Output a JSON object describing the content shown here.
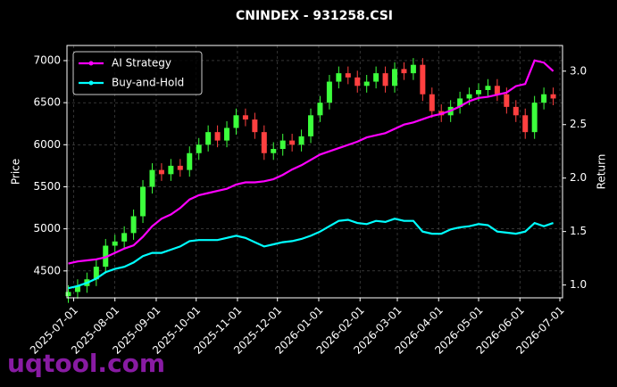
{
  "chart_data": {
    "type": "candlestick",
    "title": "CNINDEX - 931258.CSI",
    "x": [
      "2025-06-27",
      "2025-07-04",
      "2025-07-11",
      "2025-07-18",
      "2025-07-25",
      "2025-08-01",
      "2025-08-08",
      "2025-08-15",
      "2025-08-22",
      "2025-08-29",
      "2025-09-05",
      "2025-09-12",
      "2025-09-19",
      "2025-09-26",
      "2025-10-03",
      "2025-10-10",
      "2025-10-17",
      "2025-10-24",
      "2025-10-31",
      "2025-11-07",
      "2025-11-14",
      "2025-11-21",
      "2025-11-28",
      "2025-12-05",
      "2025-12-12",
      "2025-12-19",
      "2025-12-26",
      "2026-01-02",
      "2026-01-09",
      "2026-01-16",
      "2026-01-23",
      "2026-01-30",
      "2026-02-06",
      "2026-02-13",
      "2026-02-20",
      "2026-02-27",
      "2026-03-06",
      "2026-03-13",
      "2026-03-20",
      "2026-03-27",
      "2026-04-03",
      "2026-04-10",
      "2026-04-17",
      "2026-04-24",
      "2026-05-01",
      "2026-05-08",
      "2026-05-15",
      "2026-05-22",
      "2026-05-29",
      "2026-06-05",
      "2026-06-12",
      "2026-06-19",
      "2026-06-26"
    ],
    "open": [
      4200,
      4250,
      4320,
      4400,
      4550,
      4800,
      4850,
      4950,
      5150,
      5500,
      5700,
      5650,
      5750,
      5700,
      5900,
      6000,
      6150,
      6050,
      6200,
      6350,
      6300,
      6150,
      5900,
      5950,
      6050,
      6000,
      6100,
      6350,
      6500,
      6750,
      6850,
      6800,
      6700,
      6750,
      6850,
      6700,
      6900,
      6850,
      6950,
      6600,
      6400,
      6350,
      6450,
      6550,
      6600,
      6650,
      6700,
      6600,
      6450,
      6350,
      6150,
      6500,
      6600
    ],
    "high": [
      4330,
      4400,
      4480,
      4630,
      4880,
      4930,
      5030,
      5230,
      5580,
      5780,
      5780,
      5830,
      5830,
      5980,
      6080,
      6230,
      6230,
      6280,
      6430,
      6430,
      6380,
      6230,
      6030,
      6130,
      6130,
      6180,
      6430,
      6580,
      6830,
      6930,
      6930,
      6880,
      6830,
      6930,
      6930,
      6980,
      6980,
      7030,
      7030,
      6680,
      6480,
      6530,
      6630,
      6680,
      6730,
      6780,
      6780,
      6680,
      6530,
      6430,
      6580,
      6680,
      6680
    ],
    "low": [
      4120,
      4170,
      4240,
      4320,
      4470,
      4720,
      4770,
      4870,
      5070,
      5420,
      5570,
      5570,
      5620,
      5620,
      5820,
      5920,
      5970,
      5970,
      6120,
      6220,
      6070,
      5820,
      5820,
      5870,
      5920,
      5920,
      6020,
      6270,
      6420,
      6670,
      6720,
      6620,
      6620,
      6670,
      6620,
      6620,
      6770,
      6770,
      6520,
      6320,
      6270,
      6270,
      6370,
      6470,
      6520,
      6570,
      6520,
      6370,
      6270,
      6070,
      6070,
      6420,
      6470
    ],
    "close": [
      4250,
      4320,
      4400,
      4550,
      4800,
      4850,
      4950,
      5150,
      5500,
      5700,
      5650,
      5750,
      5700,
      5900,
      6000,
      6150,
      6050,
      6200,
      6350,
      6300,
      6150,
      5900,
      5950,
      6050,
      6000,
      6100,
      6350,
      6500,
      6750,
      6850,
      6800,
      6700,
      6750,
      6850,
      6700,
      6900,
      6850,
      6950,
      6600,
      6400,
      6350,
      6450,
      6550,
      6600,
      6650,
      6700,
      6600,
      6450,
      6350,
      6150,
      6500,
      6600,
      6550
    ],
    "up_color": "#3cff3c",
    "down_color": "#ff4040",
    "series": [
      {
        "name": "AI Strategy",
        "color": "#ff00ff",
        "axis": "y2",
        "values": [
          1.2,
          1.22,
          1.23,
          1.24,
          1.26,
          1.3,
          1.34,
          1.37,
          1.45,
          1.55,
          1.62,
          1.66,
          1.72,
          1.8,
          1.84,
          1.86,
          1.88,
          1.9,
          1.94,
          1.96,
          1.96,
          1.97,
          1.99,
          2.03,
          2.08,
          2.12,
          2.17,
          2.22,
          2.25,
          2.28,
          2.31,
          2.34,
          2.38,
          2.4,
          2.42,
          2.46,
          2.5,
          2.52,
          2.55,
          2.58,
          2.6,
          2.63,
          2.67,
          2.72,
          2.75,
          2.76,
          2.78,
          2.8,
          2.86,
          2.88,
          3.1,
          3.08,
          3.0
        ]
      },
      {
        "name": "Buy-and-Hold",
        "color": "#00ffff",
        "axis": "y2",
        "values": [
          0.97,
          0.99,
          1.02,
          1.06,
          1.12,
          1.15,
          1.17,
          1.21,
          1.27,
          1.3,
          1.3,
          1.33,
          1.36,
          1.41,
          1.42,
          1.42,
          1.42,
          1.44,
          1.46,
          1.44,
          1.4,
          1.36,
          1.38,
          1.4,
          1.41,
          1.43,
          1.46,
          1.5,
          1.55,
          1.6,
          1.61,
          1.58,
          1.57,
          1.6,
          1.59,
          1.62,
          1.6,
          1.6,
          1.5,
          1.48,
          1.48,
          1.52,
          1.54,
          1.55,
          1.57,
          1.56,
          1.5,
          1.49,
          1.48,
          1.5,
          1.58,
          1.55,
          1.58
        ]
      }
    ],
    "ylabel": "Price",
    "y2label": "Return",
    "xlim": [
      "2025-06-26",
      "2026-07-03"
    ],
    "xticks": [
      "2025-07-01",
      "2025-08-01",
      "2025-09-01",
      "2025-10-01",
      "2025-11-01",
      "2025-12-01",
      "2026-01-01",
      "2026-02-01",
      "2026-03-01",
      "2026-04-01",
      "2026-05-01",
      "2026-06-01",
      "2026-07-01"
    ],
    "ylim": [
      4180,
      7180
    ],
    "yticks": [
      4500,
      5000,
      5500,
      6000,
      6500,
      7000
    ],
    "y2lim": [
      0.88,
      3.24
    ],
    "y2ticks": [
      {
        "value": 1,
        "label": "1.0"
      },
      1.5,
      {
        "value": 2,
        "label": "2.0"
      },
      2.5,
      {
        "value": 3,
        "label": "3.0"
      }
    ],
    "grid": true,
    "legend": "upper-left",
    "watermark": "uqtool.com"
  }
}
